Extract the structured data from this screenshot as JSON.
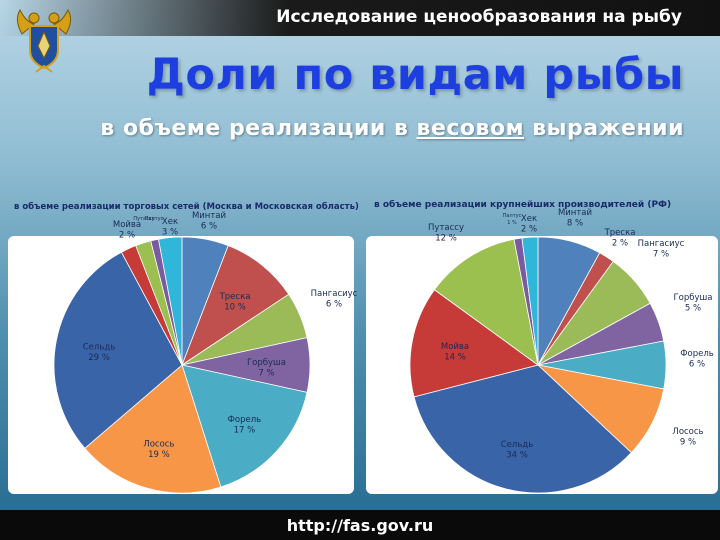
{
  "header": {
    "title": "Исследование ценообразования на рыбу"
  },
  "title": "Доли по видам рыбы",
  "subtitle": {
    "prefix": "в объеме реализации в ",
    "emphasis": "весовом",
    "suffix": " выражении"
  },
  "footer": {
    "url": "http://fas.gov.ru"
  },
  "chart_data": [
    {
      "type": "pie",
      "title": "в объеме реализации торговых сетей  (Москва и Московская область)",
      "slices": [
        {
          "label": "Минтай",
          "value": 6,
          "text": "6 %",
          "color": "#4f81bd"
        },
        {
          "label": "Треска",
          "value": 10,
          "text": "10 %",
          "color": "#c0504d"
        },
        {
          "label": "Пангасиус",
          "value": 6,
          "text": "6 %",
          "color": "#9bbb59"
        },
        {
          "label": "Горбуша",
          "value": 7,
          "text": "7 %",
          "color": "#8064a2"
        },
        {
          "label": "Форель",
          "value": 17,
          "text": "17 %",
          "color": "#4bacc6"
        },
        {
          "label": "Лосось",
          "value": 19,
          "text": "19 %",
          "color": "#f79646"
        },
        {
          "label": "Сельдь",
          "value": 29,
          "text": "29 %",
          "color": "#3a64a8"
        },
        {
          "label": "Мойва",
          "value": 2,
          "text": "2 %",
          "color": "#c63a37"
        },
        {
          "label": "Путассу",
          "value": 2,
          "text": "",
          "color": "#9bc04f"
        },
        {
          "label": "Палтус",
          "value": 1,
          "text": "",
          "color": "#7a5aa0"
        },
        {
          "label": "Хек",
          "value": 3,
          "text": "3 %",
          "color": "#2fb6d8"
        }
      ]
    },
    {
      "type": "pie",
      "title": "в объеме реализации крупнейших производителей (РФ)",
      "slices": [
        {
          "label": "Минтай",
          "value": 8,
          "text": "8 %",
          "color": "#4f81bd"
        },
        {
          "label": "Треска",
          "value": 2,
          "text": "2 %",
          "color": "#c0504d"
        },
        {
          "label": "Пангасиус",
          "value": 7,
          "text": "7 %",
          "color": "#9bbb59"
        },
        {
          "label": "Горбуша",
          "value": 5,
          "text": "5 %",
          "color": "#8064a2"
        },
        {
          "label": "Форель",
          "value": 6,
          "text": "6 %",
          "color": "#4bacc6"
        },
        {
          "label": "Лосось",
          "value": 9,
          "text": "9 %",
          "color": "#f79646"
        },
        {
          "label": "Сельдь",
          "value": 34,
          "text": "34 %",
          "color": "#3a64a8"
        },
        {
          "label": "Мойва",
          "value": 14,
          "text": "14 %",
          "color": "#c63a37"
        },
        {
          "label": "Путассу",
          "value": 12,
          "text": "12 %",
          "color": "#9bc04f"
        },
        {
          "label": "Палтус",
          "value": 1,
          "text": "1 %",
          "color": "#7a5aa0"
        },
        {
          "label": "Хек",
          "value": 2,
          "text": "2 %",
          "color": "#2fb6d8"
        }
      ]
    }
  ]
}
